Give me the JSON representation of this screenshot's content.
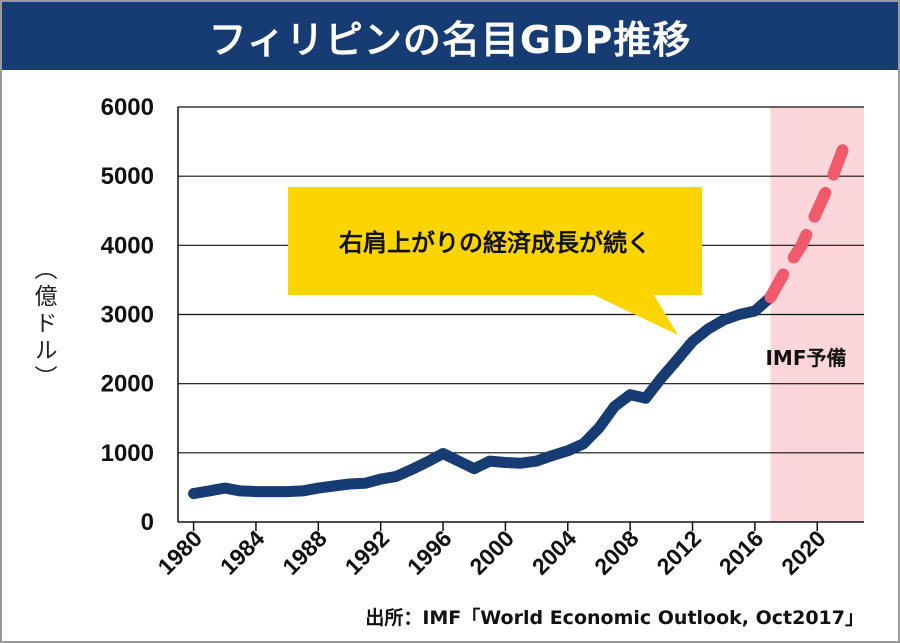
{
  "title": "フィリピンの名目GDP推移",
  "source": "出所：IMF「World Economic Outlook, Oct2017」",
  "colors": {
    "header": "#173c74",
    "actual_line": "#173c74",
    "forecast_line": "#f05a6a",
    "forecast_band": "#fcd6da",
    "callout": "#fcd400"
  },
  "chart_data": {
    "type": "line",
    "title": "フィリピンの名目GDP推移",
    "ylabel": "（億ドル）",
    "xlabel": "",
    "xlim": [
      1979,
      2023
    ],
    "ylim": [
      0,
      6000
    ],
    "yticks": [
      0,
      1000,
      2000,
      3000,
      4000,
      5000,
      6000
    ],
    "xticks": [
      1980,
      1984,
      1988,
      1992,
      1996,
      2000,
      2004,
      2008,
      2012,
      2016,
      2020
    ],
    "grid": true,
    "annotation": "右肩上がりの経済成長が続く",
    "forecast_band_label": "IMF予備",
    "forecast_start": 2017,
    "series": [
      {
        "style": "solid",
        "x": [
          1980,
          1981,
          1982,
          1983,
          1984,
          1985,
          1986,
          1987,
          1988,
          1989,
          1990,
          1991,
          1992,
          1993,
          1994,
          1995,
          1996,
          1997,
          1998,
          1999,
          2000,
          2001,
          2002,
          2003,
          2004,
          2005,
          2006,
          2007,
          2008,
          2009,
          2010,
          2011,
          2012,
          2013,
          2014,
          2015,
          2016,
          2017
        ],
        "y": [
          410,
          450,
          490,
          450,
          440,
          440,
          440,
          450,
          490,
          520,
          550,
          560,
          620,
          660,
          760,
          870,
          990,
          880,
          770,
          880,
          860,
          850,
          880,
          960,
          1030,
          1130,
          1360,
          1670,
          1840,
          1790,
          2080,
          2340,
          2610,
          2790,
          2920,
          3000,
          3050,
          3250
        ]
      },
      {
        "style": "dashed",
        "x": [
          2017,
          2018,
          2019,
          2020,
          2021,
          2022
        ],
        "y": [
          3250,
          3650,
          4000,
          4500,
          5000,
          5600
        ]
      }
    ]
  }
}
